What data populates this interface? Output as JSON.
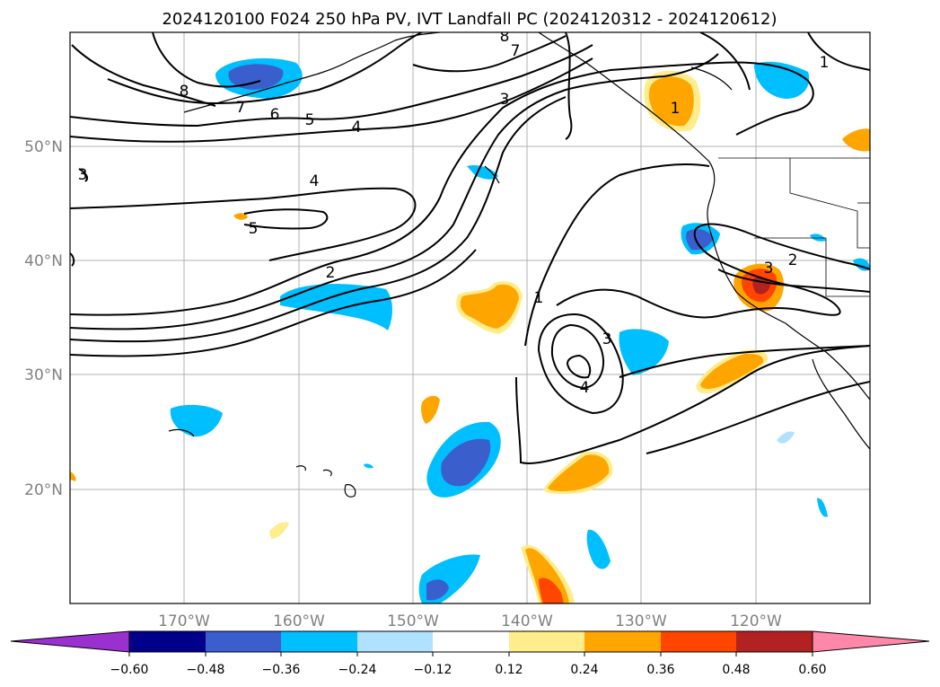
{
  "title": "2024120100 F024 250 hPa PV, IVT Landfall PC (2024120312 - 2024120612)",
  "map": {
    "lon_ticks": [
      "170°W",
      "160°W",
      "150°W",
      "140°W",
      "130°W",
      "120°W"
    ],
    "lat_ticks": [
      "50°N",
      "40°N",
      "30°N",
      "20°N"
    ],
    "contour_labels": [
      "8",
      "7",
      "6",
      "5",
      "4",
      "3",
      "2",
      "1",
      "1",
      "2",
      "3",
      "3",
      "4",
      "4",
      "5",
      "7",
      "8",
      "1",
      "3"
    ]
  },
  "colorbar": {
    "colors": [
      "#9b30d0",
      "#00008b",
      "#3a5fcd",
      "#00bfff",
      "#b0e2ff",
      "#ffffff",
      "#ffec8b",
      "#ffa500",
      "#ff4500",
      "#b22222",
      "#ff88aa"
    ],
    "labels": [
      "−0.60",
      "−0.48",
      "−0.36",
      "−0.24",
      "−0.12",
      "0.12",
      "0.24",
      "0.36",
      "0.48",
      "0.60"
    ]
  }
}
